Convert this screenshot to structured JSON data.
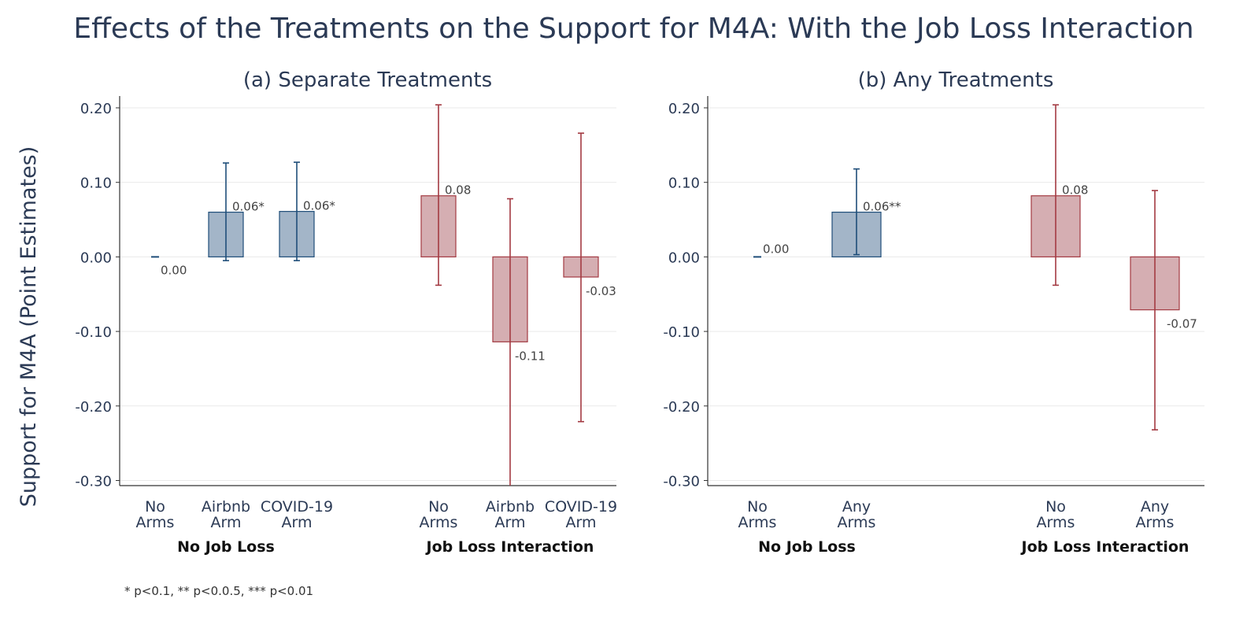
{
  "title": "Effects of the Treatments on the Support for M4A: With the Job Loss Interaction",
  "ylabel": "Support for M4A (Point Estimates)",
  "footnote": "* p<0.1, ** p<0.0.5, *** p<0.01",
  "colors": {
    "blue_fill": "#a3b5c8",
    "blue_line": "#1f4e79",
    "red_fill": "#d5aeb2",
    "red_line": "#a33a42",
    "title": "#2b3a55",
    "grid": "#e9e9e9"
  },
  "chart_data": [
    {
      "type": "bar",
      "title": "(a) Separate Treatments",
      "ylim": [
        -0.31,
        0.2
      ],
      "yticks": [
        "0.20",
        "0.10",
        "0.00",
        "-0.10",
        "-0.20",
        "-0.30"
      ],
      "ytick_values": [
        0.2,
        0.1,
        0.0,
        -0.1,
        -0.2,
        -0.3
      ],
      "grid": true,
      "groups": [
        {
          "label": "No Job Loss",
          "color": "blue",
          "bars": [
            {
              "line1": "No",
              "line2": "Arms",
              "value": 0.0,
              "ci_low": 0.0,
              "ci_high": 0.0,
              "label": "0.00"
            },
            {
              "line1": "Airbnb",
              "line2": "Arm",
              "value": 0.06,
              "ci_low": -0.005,
              "ci_high": 0.126,
              "label": "0.06*"
            },
            {
              "line1": "COVID-19",
              "line2": "Arm",
              "value": 0.061,
              "ci_low": -0.005,
              "ci_high": 0.127,
              "label": "0.06*"
            }
          ]
        },
        {
          "label": "Job Loss Interaction",
          "color": "red",
          "bars": [
            {
              "line1": "No",
              "line2": "Arms",
              "value": 0.082,
              "ci_low": -0.038,
              "ci_high": 0.204,
              "label": "0.08"
            },
            {
              "line1": "Airbnb",
              "line2": "Arm",
              "value": -0.114,
              "ci_low": -0.31,
              "ci_high": 0.078,
              "label": "-0.11"
            },
            {
              "line1": "COVID-19",
              "line2": "Arm",
              "value": -0.027,
              "ci_low": -0.221,
              "ci_high": 0.166,
              "label": "-0.03"
            }
          ]
        }
      ]
    },
    {
      "type": "bar",
      "title": "(b) Any Treatments",
      "ylim": [
        -0.31,
        0.2
      ],
      "yticks": [
        "0.20",
        "0.10",
        "0.00",
        "-0.10",
        "-0.20",
        "-0.30"
      ],
      "ytick_values": [
        0.2,
        0.1,
        0.0,
        -0.1,
        -0.2,
        -0.3
      ],
      "grid": true,
      "groups": [
        {
          "label": "No Job Loss",
          "color": "blue",
          "bars": [
            {
              "line1": "No",
              "line2": "Arms",
              "value": 0.0,
              "ci_low": 0.0,
              "ci_high": 0.0,
              "label": "0.00"
            },
            {
              "line1": "Any",
              "line2": "Arms",
              "value": 0.06,
              "ci_low": 0.003,
              "ci_high": 0.118,
              "label": "0.06**"
            }
          ]
        },
        {
          "label": "Job Loss Interaction",
          "color": "red",
          "bars": [
            {
              "line1": "No",
              "line2": "Arms",
              "value": 0.082,
              "ci_low": -0.038,
              "ci_high": 0.204,
              "label": "0.08"
            },
            {
              "line1": "Any",
              "line2": "Arms",
              "value": -0.071,
              "ci_low": -0.232,
              "ci_high": 0.089,
              "label": "-0.07"
            }
          ]
        }
      ]
    }
  ]
}
